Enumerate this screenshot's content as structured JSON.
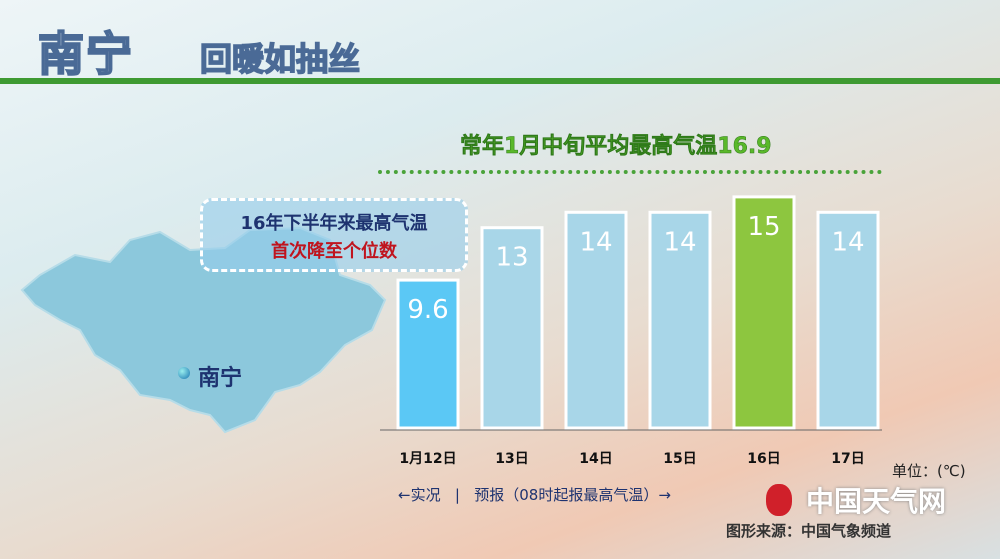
{
  "header": {
    "title": "南宁",
    "subtitle": "回暖如抽丝"
  },
  "callout": {
    "line1": "16年下半年来最高气温",
    "line2": "首次降至个位数"
  },
  "map": {
    "city": "南宁",
    "map_color": "#8cc8dc"
  },
  "legend": {
    "text": "←实况   |   预报（08时起报最高气温）→"
  },
  "unit": "单位：(℃)",
  "logo": "中国天气网",
  "source": "图形来源：中国气象频道",
  "chart_data": {
    "type": "bar",
    "title": "常年1月中旬平均最高气温16.9",
    "categories": [
      "1月12日",
      "13日",
      "14日",
      "15日",
      "16日",
      "17日"
    ],
    "values": [
      9.6,
      13,
      14,
      14,
      15,
      14
    ],
    "labels": [
      "9.6",
      "13",
      "14",
      "14",
      "15",
      "14"
    ],
    "reference_line": 16.9,
    "ylim": [
      0,
      27
    ],
    "colors": {
      "observed": "#5bc8f5",
      "forecast": "#a8d6e8",
      "highlight": "#8dc63f",
      "reference": "#4aa33a"
    }
  }
}
